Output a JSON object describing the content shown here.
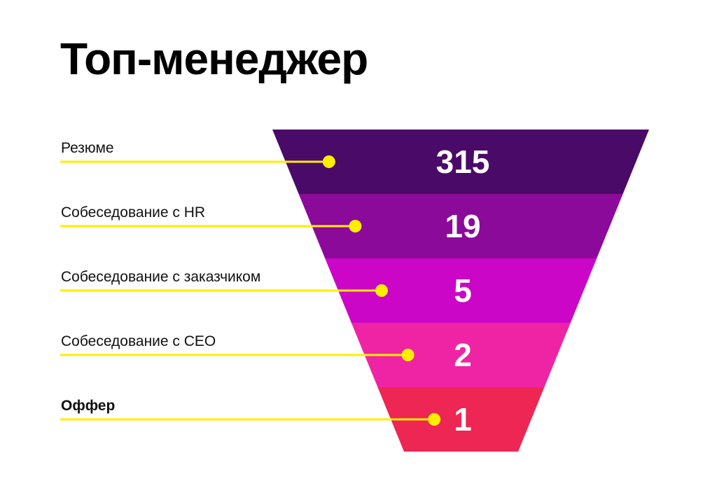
{
  "title": "Топ-менеджер",
  "chart_data": {
    "type": "funnel",
    "title": "Топ-менеджер",
    "stages": [
      {
        "label": "Резюме",
        "value": 315,
        "color": "#4a0a68",
        "bold": false
      },
      {
        "label": "Собеседование с HR",
        "value": 19,
        "color": "#8b0a9a",
        "bold": false
      },
      {
        "label": "Собеседование с заказчиком",
        "value": 5,
        "color": "#cc06c6",
        "bold": false
      },
      {
        "label": "Собеседование с CEO",
        "value": 2,
        "color": "#ef24a4",
        "bold": false
      },
      {
        "label": "Оффер",
        "value": 1,
        "color": "#ee2653",
        "bold": true
      }
    ],
    "connector_color": "#ffee00",
    "dot_color": "#ffee00"
  }
}
